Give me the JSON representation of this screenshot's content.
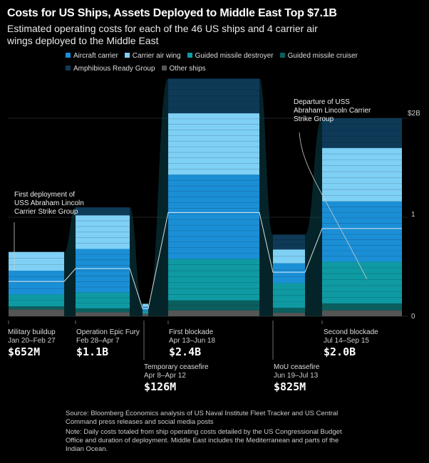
{
  "title": "Costs for US Ships, Assets Deployed to Middle East Top $7.1B",
  "subtitle": "Estimated operating costs for each of the 46 US ships and 4 carrier air wings deployed to the Middle East",
  "legend": [
    {
      "label": "Aircraft carrier",
      "color": "#1b8fd6"
    },
    {
      "label": "Carrier air wing",
      "color": "#7fd0f5"
    },
    {
      "label": "Guided missile destroyer",
      "color": "#0f9aa3"
    },
    {
      "label": "Guided missile cruiser",
      "color": "#0b5e5e"
    },
    {
      "label": "Amphibious Ready Group",
      "color": "#0e3a58"
    },
    {
      "label": "Other ships",
      "color": "#555555"
    }
  ],
  "annotations": {
    "first_deploy": "First deployment of USS Abraham Lincoln Carrier Strike Group",
    "departure": "Departure of USS Abraham Lincoln Carrier Strike Group"
  },
  "y_ticks": [
    "$2B",
    "1",
    "0"
  ],
  "periods": [
    {
      "name": "Military buildup",
      "dates": "Jan 20–Feb 27",
      "value": "$652M"
    },
    {
      "name": "Operation Epic Fury",
      "dates": "Feb 28–Apr 7",
      "value": "$1.1B"
    },
    {
      "name": "Temporary ceasefire",
      "dates": "Apr 8–Apr 12",
      "value": "$126M"
    },
    {
      "name": "First blockade",
      "dates": "Apr 13–Jun 18",
      "value": "$2.4B"
    },
    {
      "name": "MoU ceasefire",
      "dates": "Jun 19–Jul 13",
      "value": "$825M"
    },
    {
      "name": "Second blockade",
      "dates": "Jul 14–Sep 15",
      "value": "$2.0B"
    }
  ],
  "source": "Source: Bloomberg Economics analysis of US Naval Institute Fleet Tracker and US Central Command press releases and social media posts",
  "note": "Note: Daily costs totaled from ship operating costs detailed by the US Congressional Budget Office and duration of deployment. Middle East includes the Mediterranean and parts of the Indian Ocean.",
  "chart_data": {
    "type": "area",
    "categories": [
      "Military buildup",
      "Operation Epic Fury",
      "Temporary ceasefire",
      "First blockade",
      "MoU ceasefire",
      "Second blockade"
    ],
    "series": [
      {
        "name": "Aircraft carrier",
        "values": [
          0.24,
          0.44,
          0.04,
          0.85,
          0.2,
          0.61
        ]
      },
      {
        "name": "Carrier air wing",
        "values": [
          0.19,
          0.34,
          0.03,
          0.62,
          0.14,
          0.54
        ]
      },
      {
        "name": "Guided missile destroyer",
        "values": [
          0.12,
          0.16,
          0.03,
          0.42,
          0.25,
          0.42
        ]
      },
      {
        "name": "Guided missile cruiser",
        "values": [
          0.03,
          0.04,
          0.0,
          0.1,
          0.05,
          0.07
        ]
      },
      {
        "name": "Amphibious Ready Group",
        "values": [
          0.0,
          0.08,
          0.0,
          0.35,
          0.15,
          0.3
        ]
      },
      {
        "name": "Other ships",
        "values": [
          0.07,
          0.04,
          0.026,
          0.06,
          0.035,
          0.06
        ]
      }
    ],
    "totals": [
      0.652,
      1.1,
      0.126,
      2.4,
      0.825,
      2.0
    ],
    "ylim": [
      0,
      2
    ],
    "ylabel": "",
    "xlabel": ""
  }
}
